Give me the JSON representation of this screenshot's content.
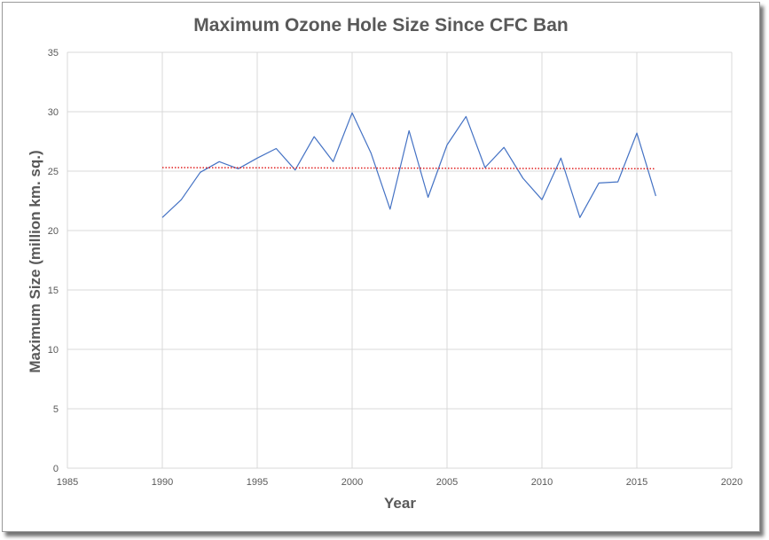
{
  "chart_data": {
    "type": "line",
    "title": "Maximum Ozone Hole Size Since CFC Ban",
    "xlabel": "Year",
    "ylabel": "Maximum Size (million km. sq.)",
    "xlim": [
      1985,
      2020
    ],
    "ylim": [
      0,
      35
    ],
    "xticks": [
      1985,
      1990,
      1995,
      2000,
      2005,
      2010,
      2015,
      2020
    ],
    "yticks": [
      0,
      5,
      10,
      15,
      20,
      25,
      30,
      35
    ],
    "grid": true,
    "legend": "none",
    "colors": {
      "series": "#4472c4",
      "trend": "#e02020",
      "grid": "#d9d9d9",
      "text": "#595959"
    },
    "series": [
      {
        "x": [
          1990,
          1991,
          1992,
          1993,
          1994,
          1995,
          1996,
          1997,
          1998,
          1999,
          2000,
          2001,
          2002,
          2003,
          2004,
          2005,
          2006,
          2007,
          2008,
          2009,
          2010,
          2011,
          2012,
          2013,
          2014,
          2015,
          2016
        ],
        "values": [
          21.1,
          22.6,
          24.9,
          25.8,
          25.2,
          26.1,
          26.9,
          25.1,
          27.9,
          25.8,
          29.9,
          26.5,
          21.8,
          28.4,
          22.8,
          27.2,
          29.6,
          25.3,
          27.0,
          24.4,
          22.6,
          26.1,
          21.1,
          24.0,
          24.1,
          28.2,
          22.9
        ]
      }
    ],
    "trendline": {
      "style": "dotted",
      "x": [
        1990,
        2016
      ],
      "values": [
        25.3,
        25.2
      ]
    }
  }
}
